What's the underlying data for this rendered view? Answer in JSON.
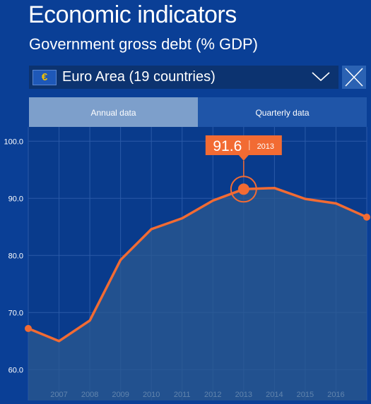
{
  "header": {
    "title": "Economic indicators",
    "subtitle": "Government gross debt (% GDP)"
  },
  "region_select": {
    "flag_symbol": "€",
    "selected": "Euro Area (19 countries)",
    "icon": "chevron-down-icon"
  },
  "close_button": {
    "icon": "close-icon"
  },
  "tabs": [
    {
      "label": "Annual data",
      "active": true
    },
    {
      "label": "Quarterly data",
      "active": false
    }
  ],
  "tooltip": {
    "value": "91.6",
    "year": "2013"
  },
  "colors": {
    "background": "#0a3f96",
    "plot_background": "#093b8c",
    "line": "#f26b33",
    "area": "#2b5a90",
    "grid": "#2a5aa8"
  },
  "chart_data": {
    "type": "area",
    "title": "Government gross debt (% GDP)",
    "x": [
      2006,
      2007,
      2008,
      2009,
      2010,
      2011,
      2012,
      2013,
      2014,
      2015,
      2016,
      2017
    ],
    "x_tick_labels": [
      "2007",
      "2008",
      "2009",
      "2010",
      "2011",
      "2012",
      "2013",
      "2014",
      "2015",
      "2016"
    ],
    "y_tick_labels": [
      "100.0",
      "90.0",
      "80.0",
      "70.0",
      "60.0"
    ],
    "series": [
      {
        "values": [
          67.2,
          65.0,
          68.6,
          79.2,
          84.6,
          86.5,
          89.6,
          91.6,
          91.8,
          89.9,
          89.1,
          86.7
        ]
      }
    ],
    "highlight": {
      "x": 2013,
      "y": 91.6
    },
    "ylim": [
      54.6,
      102.5
    ],
    "xlim": [
      2006,
      2017
    ],
    "grid": true
  }
}
